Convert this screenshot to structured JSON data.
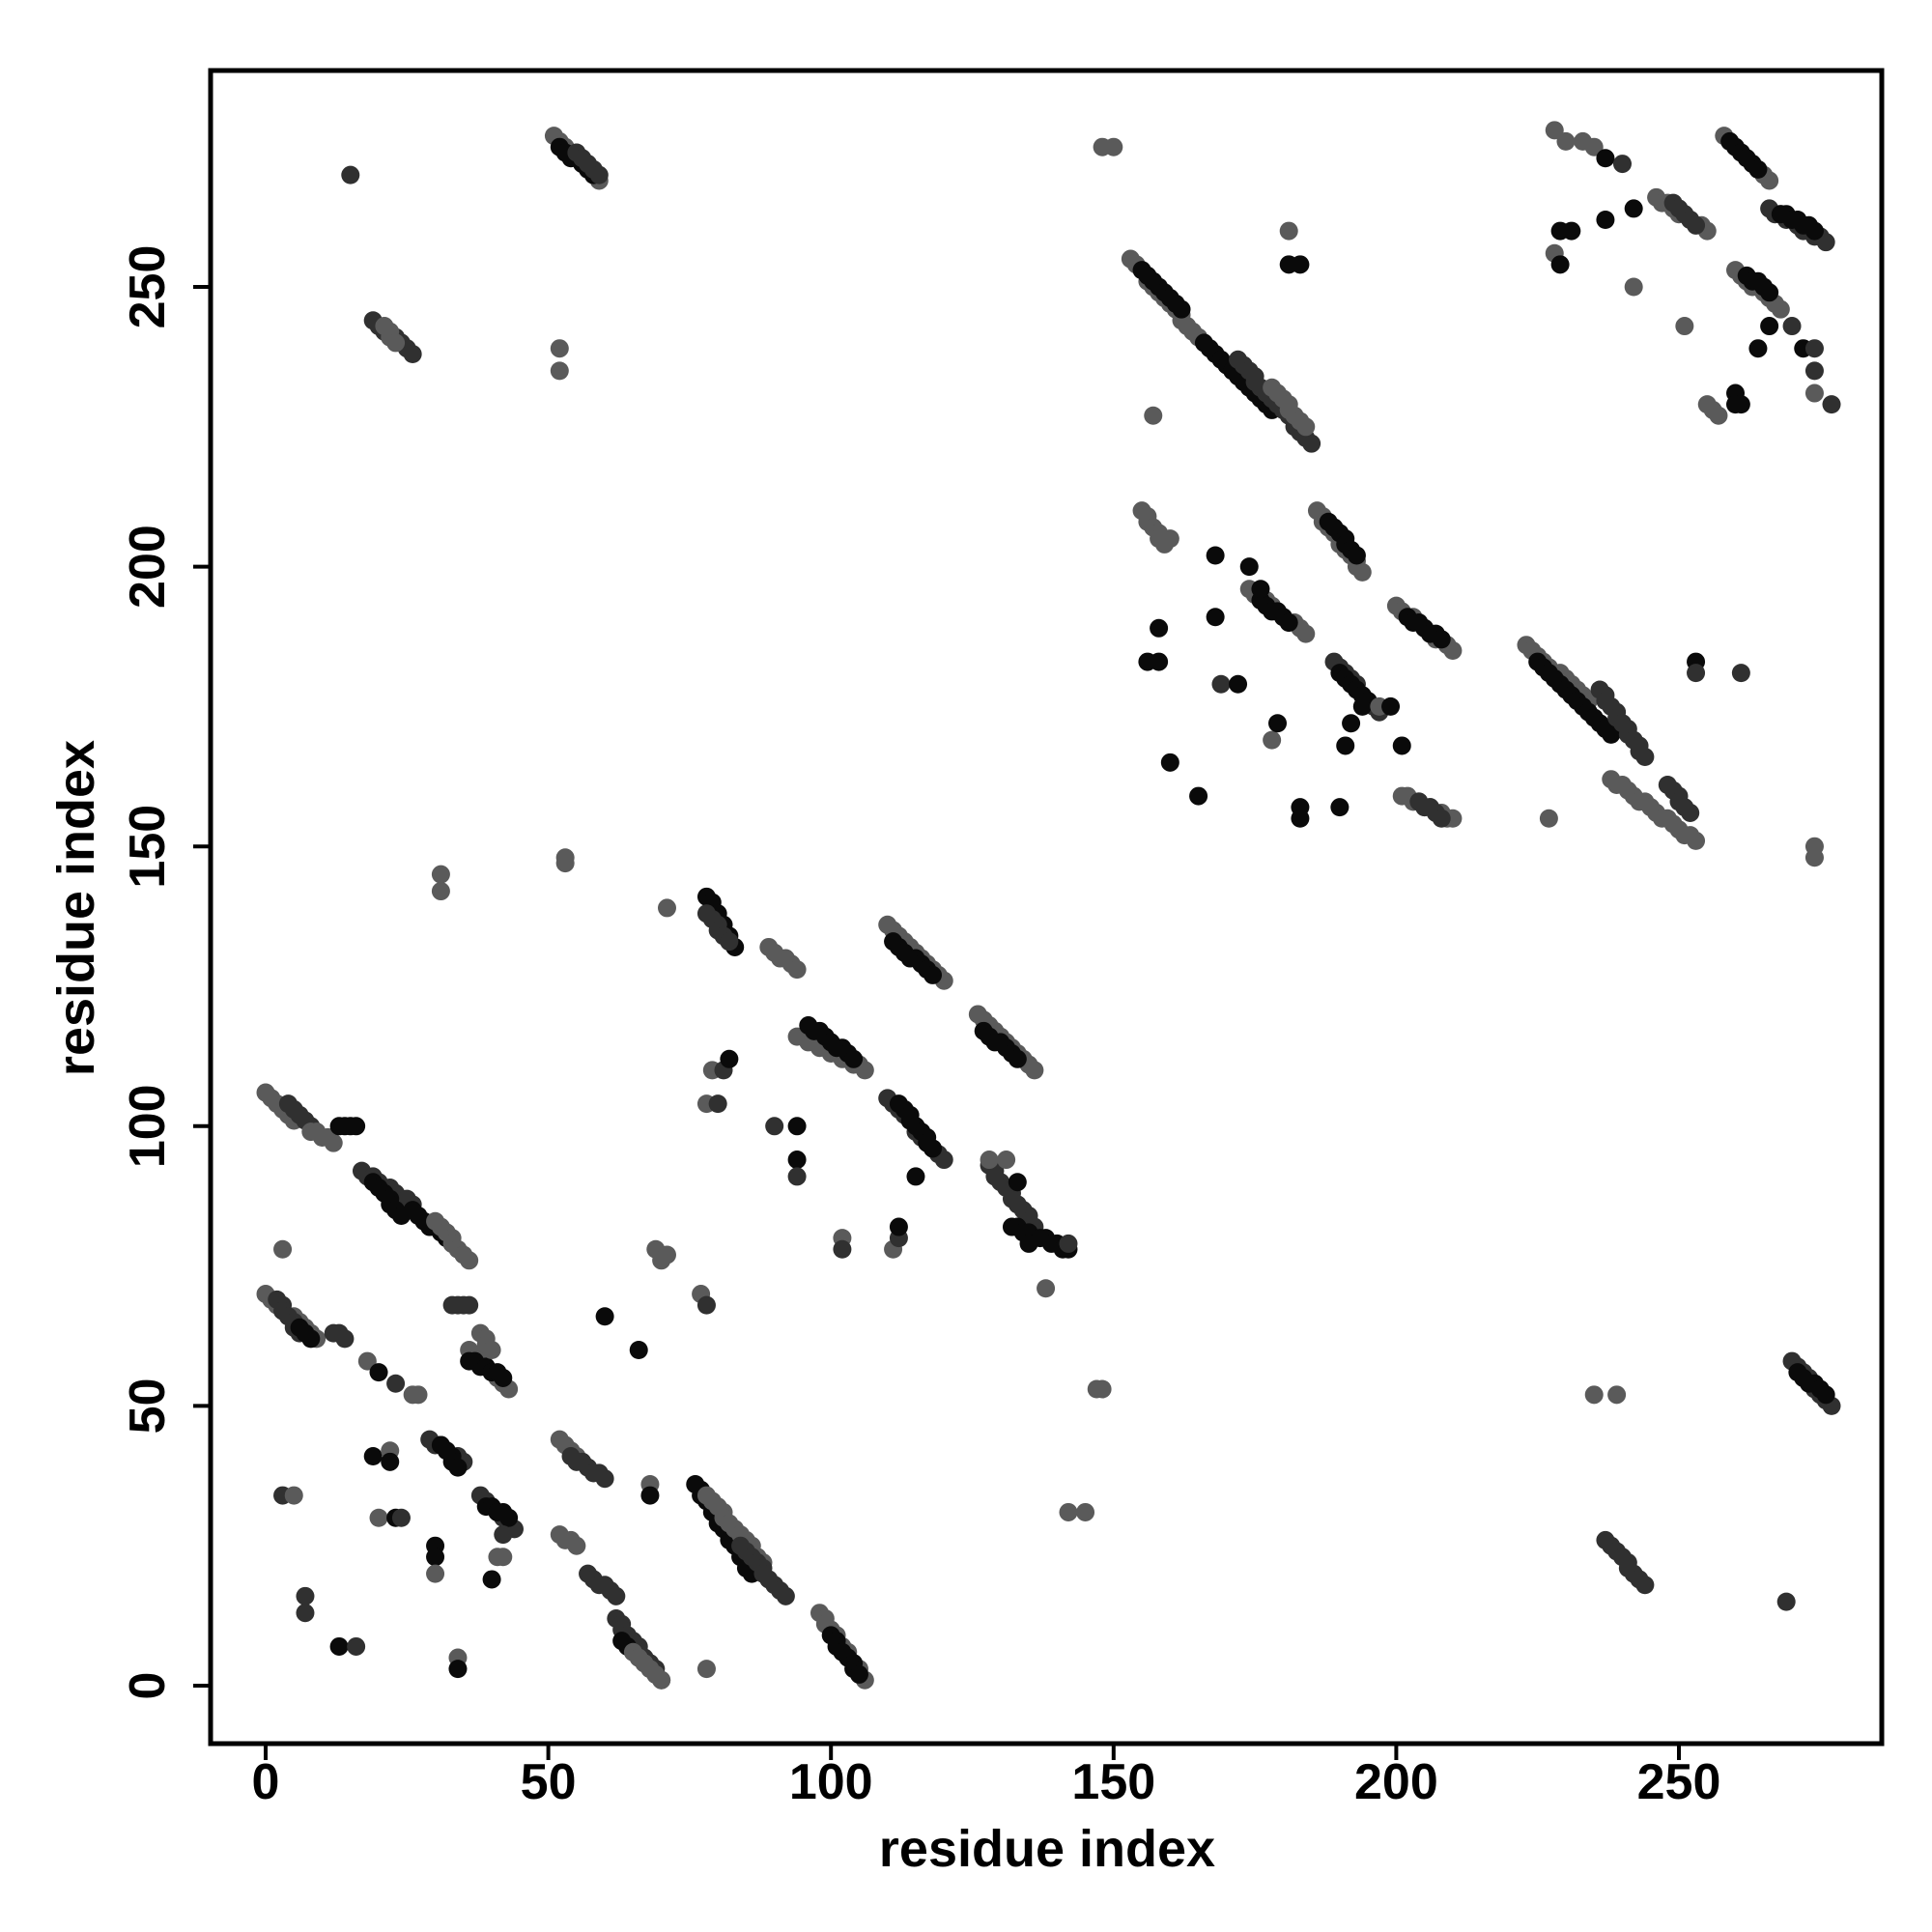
{
  "chart_data": {
    "type": "scatter",
    "title": "",
    "xlabel": "residue index",
    "ylabel": "residue index",
    "xlim": [
      -10,
      289
    ],
    "ylim": [
      -10,
      289
    ],
    "xticks": [
      0,
      50,
      100,
      150,
      200,
      250
    ],
    "yticks": [
      0,
      50,
      100,
      150,
      200,
      250
    ],
    "grid": false,
    "legend": "none",
    "point_colors": {
      "dark": "#0a0a0a",
      "mid": "#303030",
      "light": "#5a5a5a"
    },
    "segments": [
      [
        0,
        70,
        9,
        62,
        "light"
      ],
      [
        2,
        69,
        6,
        63,
        "mid"
      ],
      [
        6,
        64,
        8,
        62,
        "dark"
      ],
      [
        12,
        63,
        14,
        62,
        "mid"
      ],
      [
        0,
        106,
        5,
        101,
        "light"
      ],
      [
        4,
        104,
        10,
        98,
        "mid"
      ],
      [
        8,
        99,
        12,
        97,
        "light"
      ],
      [
        13,
        100,
        16,
        100,
        "dark"
      ],
      [
        17,
        92,
        26,
        86,
        "mid"
      ],
      [
        19,
        90,
        24,
        84,
        "dark"
      ],
      [
        26,
        85,
        33,
        79,
        "dark"
      ],
      [
        30,
        83,
        36,
        76,
        "light"
      ],
      [
        33,
        68,
        36,
        68,
        "mid"
      ],
      [
        36,
        60,
        43,
        53,
        "light"
      ],
      [
        36,
        58,
        42,
        55,
        "dark"
      ],
      [
        38,
        63,
        40,
        60,
        "light"
      ],
      [
        29,
        44,
        35,
        40,
        "mid"
      ],
      [
        31,
        43,
        34,
        39,
        "dark"
      ],
      [
        38,
        34,
        44,
        28,
        "mid"
      ],
      [
        39,
        32,
        43,
        30,
        "dark"
      ],
      [
        52,
        44,
        58,
        38,
        "light"
      ],
      [
        54,
        41,
        60,
        37,
        "mid"
      ],
      [
        52,
        27,
        55,
        25,
        "light"
      ],
      [
        57,
        20,
        62,
        16,
        "mid"
      ],
      [
        62,
        12,
        70,
        1,
        "mid"
      ],
      [
        63,
        8,
        69,
        2,
        "dark"
      ],
      [
        65,
        6,
        70,
        1,
        "light"
      ],
      [
        76,
        36,
        86,
        20,
        "dark"
      ],
      [
        78,
        34,
        88,
        22,
        "light"
      ],
      [
        84,
        25,
        92,
        16,
        "mid"
      ],
      [
        98,
        13,
        106,
        1,
        "light"
      ],
      [
        100,
        9,
        105,
        2,
        "dark"
      ],
      [
        51,
        277,
        59,
        269,
        "light"
      ],
      [
        52,
        275,
        58,
        270,
        "dark"
      ],
      [
        55,
        274,
        59,
        270,
        "mid"
      ],
      [
        19,
        244,
        26,
        238,
        "mid"
      ],
      [
        21,
        243,
        23,
        240,
        "light"
      ],
      [
        78,
        141,
        83,
        132,
        "dark"
      ],
      [
        78,
        138,
        82,
        133,
        "mid"
      ],
      [
        89,
        132,
        94,
        128,
        "light"
      ],
      [
        94,
        116,
        106,
        110,
        "light"
      ],
      [
        96,
        118,
        104,
        112,
        "dark"
      ],
      [
        110,
        136,
        120,
        126,
        "light"
      ],
      [
        111,
        133,
        118,
        127,
        "dark"
      ],
      [
        126,
        120,
        136,
        110,
        "light"
      ],
      [
        127,
        117,
        133,
        112,
        "dark"
      ],
      [
        110,
        105,
        120,
        94,
        "mid"
      ],
      [
        112,
        104,
        118,
        96,
        "dark"
      ],
      [
        128,
        93,
        136,
        82,
        "mid"
      ],
      [
        132,
        82,
        142,
        78,
        "dark"
      ],
      [
        153,
        255,
        165,
        241,
        "light"
      ],
      [
        155,
        253,
        162,
        246,
        "dark"
      ],
      [
        166,
        240,
        178,
        228,
        "dark"
      ],
      [
        172,
        237,
        185,
        222,
        "mid"
      ],
      [
        178,
        232,
        184,
        225,
        "light"
      ],
      [
        155,
        210,
        159,
        204,
        "light"
      ],
      [
        186,
        210,
        194,
        199,
        "light"
      ],
      [
        188,
        208,
        193,
        202,
        "dark"
      ],
      [
        174,
        196,
        184,
        188,
        "light"
      ],
      [
        176,
        194,
        181,
        190,
        "dark"
      ],
      [
        200,
        193,
        210,
        185,
        "light"
      ],
      [
        202,
        191,
        208,
        187,
        "dark"
      ],
      [
        189,
        183,
        197,
        174,
        "mid"
      ],
      [
        190,
        181,
        195,
        176,
        "dark"
      ],
      [
        223,
        186,
        234,
        176,
        "light"
      ],
      [
        225,
        183,
        238,
        170,
        "dark"
      ],
      [
        236,
        178,
        244,
        166,
        "mid"
      ],
      [
        238,
        162,
        253,
        151,
        "light"
      ],
      [
        248,
        161,
        252,
        156,
        "mid"
      ],
      [
        201,
        159,
        210,
        155,
        "light"
      ],
      [
        204,
        158,
        208,
        155,
        "mid"
      ],
      [
        258,
        277,
        266,
        269,
        "light"
      ],
      [
        259,
        276,
        264,
        271,
        "dark"
      ],
      [
        266,
        264,
        276,
        258,
        "mid"
      ],
      [
        268,
        263,
        274,
        260,
        "dark"
      ],
      [
        246,
        266,
        255,
        260,
        "light"
      ],
      [
        249,
        265,
        253,
        261,
        "mid"
      ],
      [
        260,
        253,
        268,
        246,
        "light"
      ],
      [
        262,
        252,
        266,
        249,
        "dark"
      ],
      [
        255,
        229,
        257,
        227,
        "light"
      ],
      [
        270,
        58,
        277,
        50,
        "mid"
      ],
      [
        271,
        56,
        276,
        52,
        "dark"
      ],
      [
        237,
        26,
        244,
        18,
        "mid"
      ]
    ],
    "points": [
      [
        15,
        270,
        "mid"
      ],
      [
        52,
        239,
        "light"
      ],
      [
        52,
        235,
        "light"
      ],
      [
        148,
        275,
        "light"
      ],
      [
        150,
        275,
        "light"
      ],
      [
        31,
        145,
        "light"
      ],
      [
        31,
        142,
        "light"
      ],
      [
        53,
        148,
        "light"
      ],
      [
        53,
        147,
        "light"
      ],
      [
        71,
        139,
        "light"
      ],
      [
        3,
        78,
        "light"
      ],
      [
        3,
        34,
        "mid"
      ],
      [
        5,
        34,
        "light"
      ],
      [
        7,
        16,
        "mid"
      ],
      [
        7,
        13,
        "mid"
      ],
      [
        13,
        7,
        "dark"
      ],
      [
        16,
        7,
        "mid"
      ],
      [
        19,
        41,
        "dark"
      ],
      [
        20,
        30,
        "light"
      ],
      [
        23,
        30,
        "dark"
      ],
      [
        24,
        30,
        "mid"
      ],
      [
        22,
        42,
        "light"
      ],
      [
        22,
        40,
        "dark"
      ],
      [
        18,
        58,
        "light"
      ],
      [
        20,
        56,
        "dark"
      ],
      [
        23,
        54,
        "mid"
      ],
      [
        26,
        52,
        "light"
      ],
      [
        27,
        52,
        "light"
      ],
      [
        30,
        25,
        "dark"
      ],
      [
        30,
        23,
        "dark"
      ],
      [
        30,
        20,
        "light"
      ],
      [
        34,
        5,
        "light"
      ],
      [
        34,
        3,
        "dark"
      ],
      [
        40,
        19,
        "dark"
      ],
      [
        41,
        23,
        "light"
      ],
      [
        42,
        23,
        "light"
      ],
      [
        42,
        27,
        "mid"
      ],
      [
        60,
        66,
        "dark"
      ],
      [
        66,
        60,
        "dark"
      ],
      [
        68,
        36,
        "light"
      ],
      [
        68,
        34,
        "dark"
      ],
      [
        69,
        78,
        "light"
      ],
      [
        70,
        76,
        "light"
      ],
      [
        71,
        77,
        "light"
      ],
      [
        77,
        70,
        "light"
      ],
      [
        78,
        68,
        "mid"
      ],
      [
        78,
        3,
        "light"
      ],
      [
        78,
        104,
        "light"
      ],
      [
        80,
        104,
        "mid"
      ],
      [
        79,
        110,
        "light"
      ],
      [
        81,
        110,
        "mid"
      ],
      [
        82,
        112,
        "dark"
      ],
      [
        90,
        100,
        "mid"
      ],
      [
        94,
        100,
        "dark"
      ],
      [
        94,
        94,
        "dark"
      ],
      [
        94,
        91,
        "mid"
      ],
      [
        102,
        80,
        "light"
      ],
      [
        102,
        78,
        "mid"
      ],
      [
        111,
        78,
        "light"
      ],
      [
        112,
        80,
        "mid"
      ],
      [
        112,
        82,
        "dark"
      ],
      [
        115,
        91,
        "dark"
      ],
      [
        128,
        94,
        "light"
      ],
      [
        131,
        94,
        "light"
      ],
      [
        133,
        90,
        "dark"
      ],
      [
        135,
        79,
        "dark"
      ],
      [
        138,
        71,
        "light"
      ],
      [
        142,
        79,
        "mid"
      ],
      [
        147,
        53,
        "light"
      ],
      [
        148,
        53,
        "light"
      ],
      [
        142,
        31,
        "light"
      ],
      [
        145,
        31,
        "light"
      ],
      [
        157,
        227,
        "light"
      ],
      [
        156,
        183,
        "dark"
      ],
      [
        158,
        183,
        "dark"
      ],
      [
        158,
        189,
        "dark"
      ],
      [
        160,
        165,
        "dark"
      ],
      [
        160,
        205,
        "light"
      ],
      [
        165,
        159,
        "dark"
      ],
      [
        168,
        202,
        "dark"
      ],
      [
        168,
        191,
        "dark"
      ],
      [
        169,
        179,
        "mid"
      ],
      [
        172,
        179,
        "dark"
      ],
      [
        174,
        200,
        "dark"
      ],
      [
        176,
        196,
        "dark"
      ],
      [
        178,
        169,
        "light"
      ],
      [
        179,
        172,
        "dark"
      ],
      [
        181,
        260,
        "light"
      ],
      [
        181,
        254,
        "dark"
      ],
      [
        183,
        254,
        "dark"
      ],
      [
        183,
        157,
        "dark"
      ],
      [
        183,
        155,
        "dark"
      ],
      [
        191,
        168,
        "dark"
      ],
      [
        192,
        172,
        "dark"
      ],
      [
        194,
        175,
        "dark"
      ],
      [
        197,
        175,
        "light"
      ],
      [
        199,
        175,
        "dark"
      ],
      [
        201,
        168,
        "dark"
      ],
      [
        190,
        157,
        "dark"
      ],
      [
        227,
        155,
        "light"
      ],
      [
        228,
        278,
        "light"
      ],
      [
        230,
        276,
        "light"
      ],
      [
        233,
        276,
        "light"
      ],
      [
        235,
        275,
        "light"
      ],
      [
        237,
        273,
        "dark"
      ],
      [
        228,
        256,
        "light"
      ],
      [
        229,
        254,
        "dark"
      ],
      [
        229,
        260,
        "dark"
      ],
      [
        231,
        260,
        "dark"
      ],
      [
        237,
        262,
        "dark"
      ],
      [
        240,
        272,
        "mid"
      ],
      [
        242,
        264,
        "dark"
      ],
      [
        242,
        250,
        "light"
      ],
      [
        251,
        243,
        "light"
      ],
      [
        253,
        183,
        "dark"
      ],
      [
        253,
        181,
        "mid"
      ],
      [
        261,
        181,
        "mid"
      ],
      [
        264,
        239,
        "dark"
      ],
      [
        266,
        243,
        "dark"
      ],
      [
        260,
        231,
        "dark"
      ],
      [
        260,
        229,
        "dark"
      ],
      [
        261,
        229,
        "dark"
      ],
      [
        270,
        243,
        "mid"
      ],
      [
        272,
        239,
        "dark"
      ],
      [
        274,
        239,
        "mid"
      ],
      [
        274,
        235,
        "mid"
      ],
      [
        274,
        231,
        "light"
      ],
      [
        277,
        229,
        "mid"
      ],
      [
        274,
        150,
        "light"
      ],
      [
        274,
        148,
        "light"
      ],
      [
        269,
        15,
        "mid"
      ],
      [
        235,
        52,
        "light"
      ],
      [
        239,
        52,
        "light"
      ]
    ]
  }
}
